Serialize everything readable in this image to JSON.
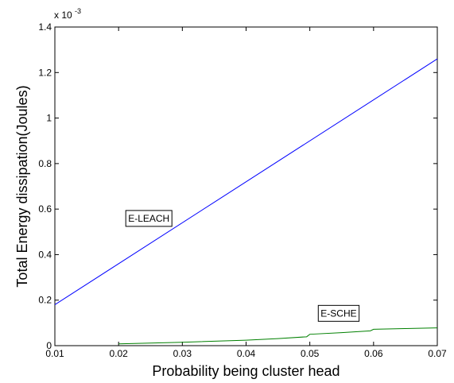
{
  "chart_data": {
    "type": "line",
    "xlabel": "Probability being cluster head",
    "ylabel": "Total Energy dissipation(Joules)",
    "y_exponent_label": "x 10",
    "y_exponent_power": "-3",
    "xlim": [
      0.01,
      0.07
    ],
    "ylim": [
      0,
      1.4
    ],
    "x_ticks": [
      0.01,
      0.02,
      0.03,
      0.04,
      0.05,
      0.06,
      0.07
    ],
    "x_tick_labels": [
      "0.01",
      "0.02",
      "0.03",
      "0.04",
      "0.05",
      "0.06",
      "0.07"
    ],
    "y_ticks": [
      0,
      0.2,
      0.4,
      0.6,
      0.8,
      1,
      1.2,
      1.4
    ],
    "y_tick_labels": [
      "0",
      "0.2",
      "0.4",
      "0.6",
      "0.8",
      "1",
      "1.2",
      "1.4"
    ],
    "grid": false,
    "series": [
      {
        "name": "E-LEACH",
        "color": "#0000ff",
        "x": [
          0.01,
          0.07
        ],
        "y": [
          0.18,
          1.26
        ]
      },
      {
        "name": "E-SCHE",
        "color": "#008000",
        "x": [
          0.02,
          0.03,
          0.04,
          0.045,
          0.0495,
          0.05,
          0.055,
          0.0595,
          0.06,
          0.065,
          0.07
        ],
        "y": [
          0.008,
          0.015,
          0.024,
          0.031,
          0.039,
          0.05,
          0.057,
          0.065,
          0.072,
          0.075,
          0.078
        ]
      }
    ],
    "annotations": [
      {
        "text": "E-LEACH",
        "x": 0.0215,
        "y": 0.545
      },
      {
        "text": "E-SCHE",
        "x": 0.0517,
        "y": 0.128
      }
    ]
  }
}
